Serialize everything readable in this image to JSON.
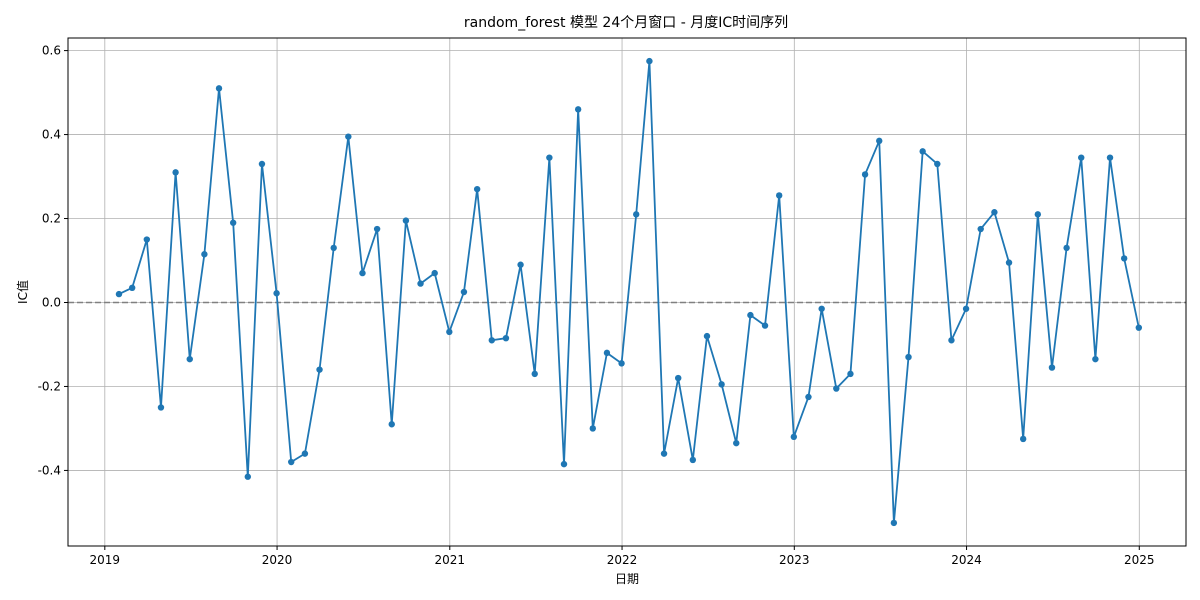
{
  "chart_data": {
    "type": "line",
    "title": "random_forest 模型 24个月窗口 - 月度IC时间序列",
    "xlabel": "日期",
    "ylabel": "IC值",
    "x_ticks": [
      "2019",
      "2020",
      "2021",
      "2022",
      "2023",
      "2024",
      "2025"
    ],
    "y_ticks": [
      "-0.4",
      "-0.2",
      "0.0",
      "0.2",
      "0.4",
      "0.6"
    ],
    "xlim": [
      "2018-10-15",
      "2025-04-10"
    ],
    "ylim": [
      -0.58,
      0.63
    ],
    "grid": true,
    "reference_line": {
      "y": 0.0,
      "style": "dashed",
      "color": "#808080"
    },
    "series": [
      {
        "color": "#1f77b4",
        "marker": "circle",
        "x": [
          "2019-01-31",
          "2019-02-28",
          "2019-03-31",
          "2019-04-30",
          "2019-05-31",
          "2019-06-30",
          "2019-07-31",
          "2019-08-31",
          "2019-09-30",
          "2019-10-31",
          "2019-11-30",
          "2019-12-31",
          "2020-01-31",
          "2020-02-29",
          "2020-03-31",
          "2020-04-30",
          "2020-05-31",
          "2020-06-30",
          "2020-07-31",
          "2020-08-31",
          "2020-09-30",
          "2020-10-31",
          "2020-11-30",
          "2020-12-31",
          "2021-01-31",
          "2021-02-28",
          "2021-03-31",
          "2021-04-30",
          "2021-05-31",
          "2021-06-30",
          "2021-07-31",
          "2021-08-31",
          "2021-09-30",
          "2021-10-31",
          "2021-11-30",
          "2021-12-31",
          "2022-01-31",
          "2022-02-28",
          "2022-03-31",
          "2022-04-30",
          "2022-05-31",
          "2022-06-30",
          "2022-07-31",
          "2022-08-31",
          "2022-09-30",
          "2022-10-31",
          "2022-11-30",
          "2022-12-31",
          "2023-01-31",
          "2023-02-28",
          "2023-03-31",
          "2023-04-30",
          "2023-05-31",
          "2023-06-30",
          "2023-07-31",
          "2023-08-31",
          "2023-09-30",
          "2023-10-31",
          "2023-11-30",
          "2023-12-31",
          "2024-01-31",
          "2024-02-29",
          "2024-03-31",
          "2024-04-30",
          "2024-05-31",
          "2024-06-30",
          "2024-07-31",
          "2024-08-31",
          "2024-09-30",
          "2024-10-31",
          "2024-11-30",
          "2024-12-31"
        ],
        "values": [
          0.02,
          0.035,
          0.15,
          -0.25,
          0.31,
          -0.135,
          0.115,
          0.51,
          0.19,
          -0.415,
          0.33,
          0.022,
          -0.38,
          -0.36,
          -0.16,
          0.13,
          0.395,
          0.07,
          0.175,
          -0.29,
          0.195,
          0.045,
          0.07,
          -0.07,
          0.025,
          0.27,
          -0.09,
          -0.085,
          0.09,
          -0.17,
          0.345,
          -0.385,
          0.46,
          -0.3,
          -0.12,
          -0.145,
          0.21,
          0.575,
          -0.36,
          -0.18,
          -0.375,
          -0.08,
          -0.195,
          -0.335,
          -0.03,
          -0.055,
          0.255,
          -0.32,
          -0.225,
          -0.015,
          -0.205,
          -0.17,
          0.305,
          0.385,
          -0.525,
          -0.13,
          0.36,
          0.33,
          -0.09,
          -0.015,
          0.175,
          0.215,
          0.095,
          -0.325,
          0.21,
          -0.155,
          0.13,
          0.345,
          -0.135,
          0.345,
          0.105,
          -0.06
        ]
      }
    ]
  }
}
